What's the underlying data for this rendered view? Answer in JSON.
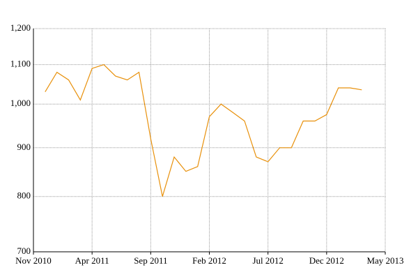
{
  "chart_data": {
    "type": "line",
    "x": [
      "2010-12",
      "2011-01",
      "2011-02",
      "2011-03",
      "2011-04",
      "2011-05",
      "2011-06",
      "2011-07",
      "2011-08",
      "2011-09",
      "2011-10",
      "2011-11",
      "2011-12",
      "2012-01",
      "2012-02",
      "2012-03",
      "2012-04",
      "2012-05",
      "2012-06",
      "2012-07",
      "2012-08",
      "2012-09",
      "2012-10",
      "2012-11",
      "2012-12",
      "2013-01",
      "2013-02",
      "2013-03"
    ],
    "series": [
      {
        "color": "#e8900a",
        "values": [
          1030,
          1080,
          1060,
          1010,
          1090,
          1100,
          1070,
          1060,
          1080,
          920,
          800,
          880,
          850,
          860,
          970,
          1000,
          980,
          960,
          880,
          870,
          900,
          900,
          960,
          960,
          975,
          1040,
          1040,
          1035
        ]
      }
    ],
    "xlim": [
      "2010-11",
      "2013-05"
    ],
    "xticks": [
      {
        "value": "2010-11",
        "label": "Nov 2010"
      },
      {
        "value": "2011-04",
        "label": "Apr 2011"
      },
      {
        "value": "2011-09",
        "label": "Sep 2011"
      },
      {
        "value": "2012-02",
        "label": "Feb 2012"
      },
      {
        "value": "2012-07",
        "label": "Jul 2012"
      },
      {
        "value": "2012-12",
        "label": "Dec 2012"
      },
      {
        "value": "2013-05",
        "label": "May 2013"
      }
    ],
    "ylim": [
      700,
      1200
    ],
    "yticks": [
      700,
      800,
      900,
      {
        "value": 1000,
        "label": "1,000"
      },
      {
        "value": 1100,
        "label": "1,100"
      },
      {
        "value": 1200,
        "label": "1,200"
      }
    ],
    "log_y": true,
    "grid": true
  }
}
